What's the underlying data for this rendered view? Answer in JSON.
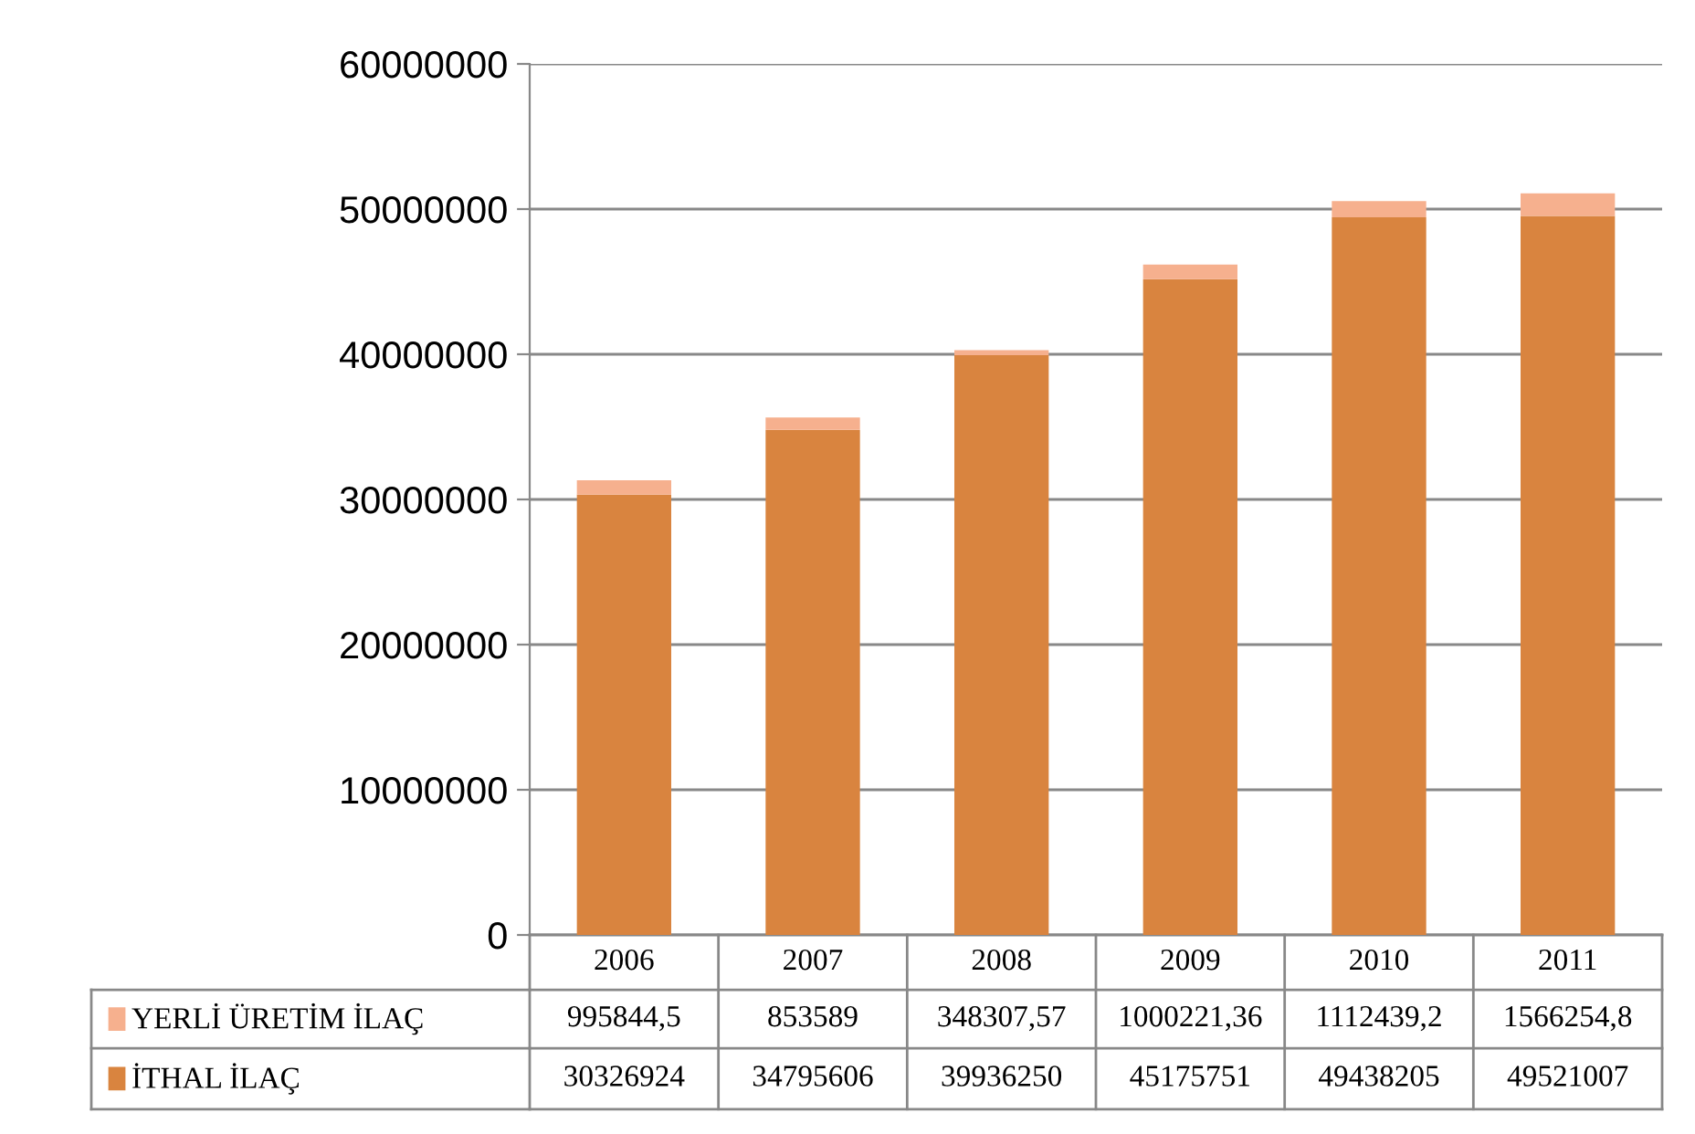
{
  "chart_data": {
    "type": "bar",
    "stacked": true,
    "categories": [
      "2006",
      "2007",
      "2008",
      "2009",
      "2010",
      "2011"
    ],
    "series": [
      {
        "name": "İTHAL İLAÇ",
        "color": "#d9843f",
        "values": [
          30326924,
          34795606,
          39936250,
          45175751,
          49438205,
          49521007
        ],
        "value_labels": [
          "30326924",
          "34795606",
          "39936250",
          "45175751",
          "49438205",
          "49521007"
        ]
      },
      {
        "name": "YERLİ ÜRETİM İLAÇ",
        "color": "#f6b08e",
        "values": [
          995844.5,
          853589,
          348307.57,
          1000221.36,
          1112439.2,
          1566254.8
        ],
        "value_labels": [
          "995844,5",
          "853589",
          "348307,57",
          "1000221,36",
          "1112439,2",
          "1566254,8"
        ]
      }
    ],
    "ylim": [
      0,
      60000000
    ],
    "yticks": [
      0,
      10000000,
      20000000,
      30000000,
      40000000,
      50000000,
      60000000
    ],
    "grid": "y",
    "legend": "bottom left"
  }
}
